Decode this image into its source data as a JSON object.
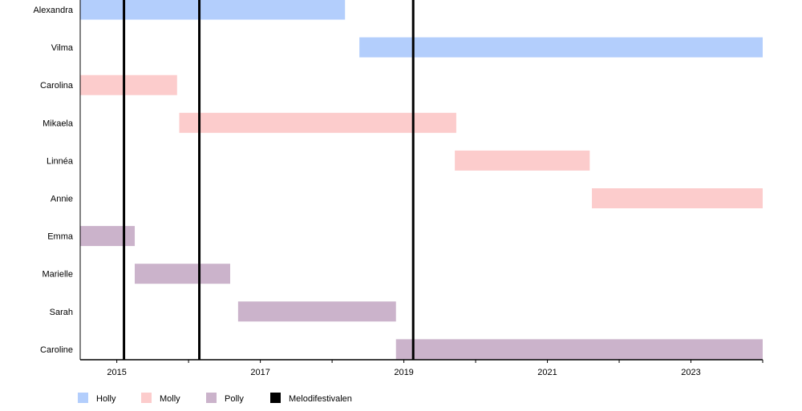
{
  "chart_data": {
    "type": "timeline",
    "xlim": [
      2014.49,
      2024.0
    ],
    "x_ticks": [
      "2015",
      "2017",
      "2019",
      "2021",
      "2023"
    ],
    "x_minor_ticks": [
      2016,
      2018,
      2020,
      2022,
      2024
    ],
    "members": [
      {
        "name": "Alexandra",
        "group": "Holly",
        "start": 2014.49,
        "end": 2018.18
      },
      {
        "name": "Vilma",
        "group": "Holly",
        "start": 2018.38,
        "end": 2024.0
      },
      {
        "name": "Carolina",
        "group": "Molly",
        "start": 2014.49,
        "end": 2015.84
      },
      {
        "name": "Mikaela",
        "group": "Molly",
        "start": 2015.87,
        "end": 2019.73
      },
      {
        "name": "Linnéa",
        "group": "Molly",
        "start": 2019.71,
        "end": 2021.59
      },
      {
        "name": "Annie",
        "group": "Molly",
        "start": 2021.62,
        "end": 2024.0
      },
      {
        "name": "Emma",
        "group": "Polly",
        "start": 2014.49,
        "end": 2015.25
      },
      {
        "name": "Marielle",
        "group": "Polly",
        "start": 2015.25,
        "end": 2016.58
      },
      {
        "name": "Sarah",
        "group": "Polly",
        "start": 2016.69,
        "end": 2018.89
      },
      {
        "name": "Caroline",
        "group": "Polly",
        "start": 2018.89,
        "end": 2024.0
      }
    ],
    "events": {
      "name": "Melodifestivalen",
      "dates": [
        2015.1,
        2016.15,
        2019.13
      ]
    },
    "legend": [
      {
        "label": "Holly",
        "color": "#b3cefc"
      },
      {
        "label": "Molly",
        "color": "#fccccc"
      },
      {
        "label": "Polly",
        "color": "#cbb3cb"
      },
      {
        "label": "Melodifestivalen",
        "color": "#000000"
      }
    ],
    "legend_position": "bottom-left"
  }
}
